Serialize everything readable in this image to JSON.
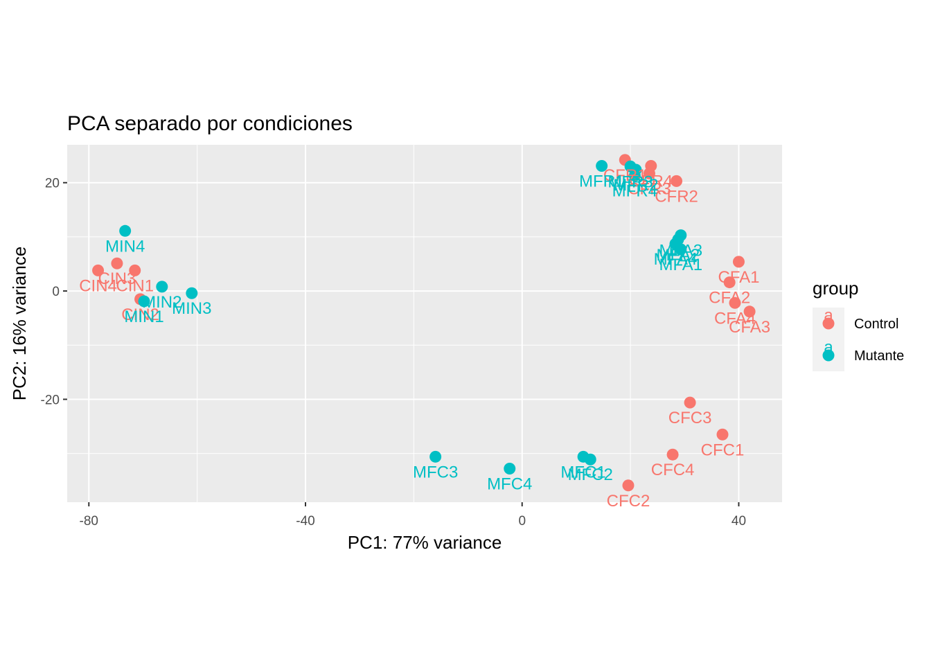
{
  "chart_data": {
    "type": "scatter",
    "title": "PCA separado por condiciones",
    "xlabel": "PC1: 77% variance",
    "ylabel": "PC2: 16% variance",
    "xlim": [
      -84,
      48
    ],
    "ylim": [
      -39,
      27
    ],
    "xticks": [
      -80,
      -40,
      0,
      40
    ],
    "yticks": [
      -20,
      0,
      20
    ],
    "grid": true,
    "legend": {
      "title": "group",
      "position": "right",
      "key_glyph": "a"
    },
    "series": [
      {
        "name": "Control",
        "color": "#F8766D",
        "points": [
          {
            "label": "CIN4",
            "x": -78.3,
            "y": 3.8
          },
          {
            "label": "CIN3",
            "x": -74.8,
            "y": 5.1
          },
          {
            "label": "CIN1",
            "x": -71.5,
            "y": 3.8
          },
          {
            "label": "CIN2",
            "x": -70.5,
            "y": -1.5
          },
          {
            "label": "CFR1",
            "x": 19.0,
            "y": 24.2
          },
          {
            "label": "CFR4",
            "x": 23.8,
            "y": 23.1
          },
          {
            "label": "CFR3",
            "x": 23.5,
            "y": 21.7
          },
          {
            "label": "CFR2",
            "x": 28.5,
            "y": 20.3
          },
          {
            "label": "CFA1",
            "x": 40.0,
            "y": 5.4
          },
          {
            "label": "CFA2",
            "x": 38.3,
            "y": 1.6
          },
          {
            "label": "CFA4",
            "x": 39.3,
            "y": -2.2
          },
          {
            "label": "CFA3",
            "x": 42.0,
            "y": -3.8
          },
          {
            "label": "CFC3",
            "x": 31.0,
            "y": -20.6
          },
          {
            "label": "CFC1",
            "x": 37.0,
            "y": -26.5
          },
          {
            "label": "CFC4",
            "x": 27.8,
            "y": -30.2
          },
          {
            "label": "CFC2",
            "x": 19.6,
            "y": -35.9
          }
        ]
      },
      {
        "name": "Mutante",
        "color": "#00BFC4",
        "points": [
          {
            "label": "MIN4",
            "x": -73.3,
            "y": 11.1
          },
          {
            "label": "MIN2",
            "x": -66.5,
            "y": 0.8
          },
          {
            "label": "MIN1",
            "x": -69.8,
            "y": -1.9
          },
          {
            "label": "MIN3",
            "x": -61.0,
            "y": -0.4
          },
          {
            "label": "MFR1",
            "x": 14.7,
            "y": 23.1
          },
          {
            "label": "MFR3",
            "x": 20.0,
            "y": 23.0
          },
          {
            "label": "MFR2",
            "x": 21.0,
            "y": 22.4
          },
          {
            "label": "MFR4",
            "x": 20.8,
            "y": 21.3
          },
          {
            "label": "MFA3",
            "x": 29.3,
            "y": 10.3
          },
          {
            "label": "MFA2",
            "x": 28.8,
            "y": 9.5
          },
          {
            "label": "MFA4",
            "x": 28.3,
            "y": 8.7
          },
          {
            "label": "MFA1",
            "x": 29.3,
            "y": 7.7
          },
          {
            "label": "MFC3",
            "x": -16.0,
            "y": -30.6
          },
          {
            "label": "MFC4",
            "x": -2.3,
            "y": -32.8
          },
          {
            "label": "MFC1",
            "x": 11.3,
            "y": -30.6
          },
          {
            "label": "MFC2",
            "x": 12.6,
            "y": -31.1
          }
        ]
      }
    ]
  }
}
